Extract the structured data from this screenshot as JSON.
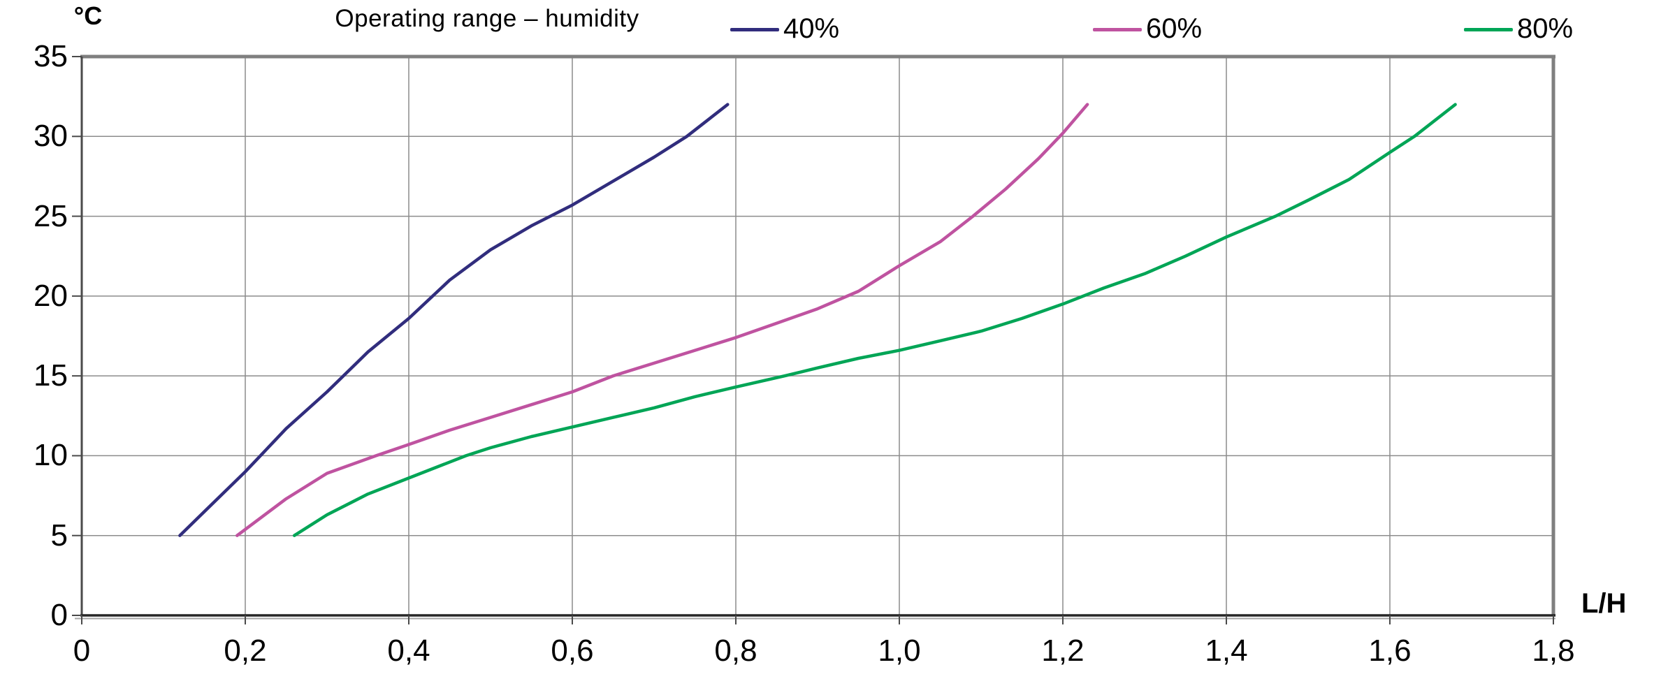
{
  "chart_data": {
    "type": "line",
    "title": "Operating range – humidity",
    "xlabel": "L/H",
    "ylabel": "°C",
    "xlim": [
      0,
      1.8
    ],
    "ylim": [
      0,
      35
    ],
    "grid": true,
    "legend_position": "top",
    "x_ticks": [
      0,
      0.2,
      0.4,
      0.6,
      0.8,
      1.0,
      1.2,
      1.4,
      1.6,
      1.8
    ],
    "x_tick_labels": [
      "0",
      "0,2",
      "0,4",
      "0,6",
      "0,8",
      "1,0",
      "1,2",
      "1,4",
      "1,6",
      "1,8"
    ],
    "y_ticks": [
      0,
      5,
      10,
      15,
      20,
      25,
      30,
      35
    ],
    "y_tick_labels": [
      "0",
      "5",
      "10",
      "15",
      "20",
      "25",
      "30",
      "35"
    ],
    "colors": {
      "grid": "#8c8c8c",
      "border_top_right": "#7f7f7f",
      "axis_left": "#4a4a4a",
      "axis_bottom": "#262626",
      "axis_bottom_shadow": "#a6a6a6",
      "tick": "#4a4a4a"
    },
    "series": [
      {
        "name": "40%",
        "color": "#312d7d",
        "points": [
          [
            0.12,
            5
          ],
          [
            0.15,
            6.5
          ],
          [
            0.2,
            9
          ],
          [
            0.25,
            11.7
          ],
          [
            0.3,
            14
          ],
          [
            0.35,
            16.5
          ],
          [
            0.4,
            18.6
          ],
          [
            0.45,
            21
          ],
          [
            0.5,
            22.9
          ],
          [
            0.55,
            24.4
          ],
          [
            0.6,
            25.7
          ],
          [
            0.65,
            27.2
          ],
          [
            0.7,
            28.7
          ],
          [
            0.74,
            30
          ],
          [
            0.79,
            32
          ]
        ]
      },
      {
        "name": "60%",
        "color": "#bf53a0",
        "points": [
          [
            0.19,
            5
          ],
          [
            0.25,
            7.3
          ],
          [
            0.3,
            8.9
          ],
          [
            0.36,
            10
          ],
          [
            0.4,
            10.7
          ],
          [
            0.45,
            11.6
          ],
          [
            0.5,
            12.4
          ],
          [
            0.55,
            13.2
          ],
          [
            0.6,
            14
          ],
          [
            0.65,
            15
          ],
          [
            0.7,
            15.8
          ],
          [
            0.75,
            16.6
          ],
          [
            0.8,
            17.4
          ],
          [
            0.85,
            18.3
          ],
          [
            0.9,
            19.2
          ],
          [
            0.95,
            20.3
          ],
          [
            1.0,
            21.9
          ],
          [
            1.05,
            23.4
          ],
          [
            1.09,
            25
          ],
          [
            1.13,
            26.7
          ],
          [
            1.17,
            28.6
          ],
          [
            1.2,
            30.2
          ],
          [
            1.23,
            32
          ]
        ]
      },
      {
        "name": "80%",
        "color": "#00a556",
        "points": [
          [
            0.26,
            5
          ],
          [
            0.3,
            6.3
          ],
          [
            0.35,
            7.6
          ],
          [
            0.4,
            8.6
          ],
          [
            0.47,
            10
          ],
          [
            0.5,
            10.5
          ],
          [
            0.55,
            11.2
          ],
          [
            0.6,
            11.8
          ],
          [
            0.65,
            12.4
          ],
          [
            0.7,
            13
          ],
          [
            0.75,
            13.7
          ],
          [
            0.8,
            14.3
          ],
          [
            0.86,
            15
          ],
          [
            0.9,
            15.5
          ],
          [
            0.95,
            16.1
          ],
          [
            1.0,
            16.6
          ],
          [
            1.05,
            17.2
          ],
          [
            1.1,
            17.8
          ],
          [
            1.15,
            18.6
          ],
          [
            1.2,
            19.5
          ],
          [
            1.25,
            20.5
          ],
          [
            1.3,
            21.4
          ],
          [
            1.35,
            22.5
          ],
          [
            1.4,
            23.7
          ],
          [
            1.46,
            25
          ],
          [
            1.5,
            26
          ],
          [
            1.55,
            27.3
          ],
          [
            1.6,
            29
          ],
          [
            1.63,
            30
          ],
          [
            1.68,
            32
          ]
        ]
      }
    ]
  }
}
